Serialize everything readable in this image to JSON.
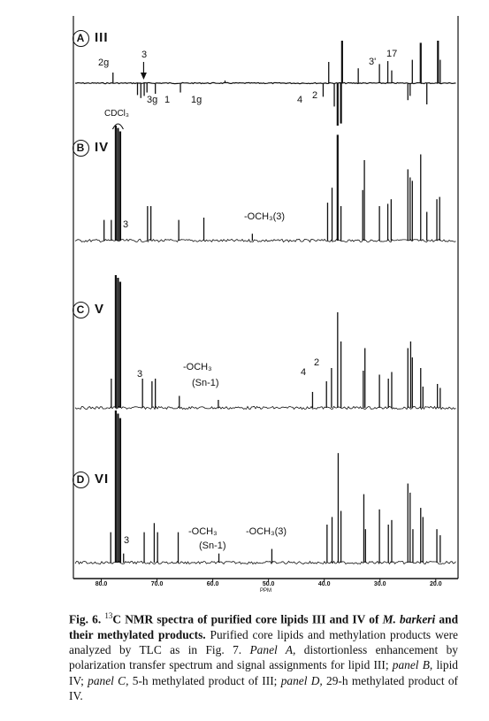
{
  "chart_data": {
    "type": "line",
    "title": "",
    "xlabel": "PPM",
    "ylabel": "",
    "xlim": [
      85,
      16
    ],
    "x_ticks": [
      "80.0",
      "70.0",
      "60.0",
      "50.0",
      "40.0",
      "30.0",
      "20.0"
    ],
    "x_tick_values": [
      80,
      70,
      60,
      50,
      40,
      30,
      20
    ],
    "grid": false,
    "panels": [
      {
        "id": "A",
        "label": "A",
        "compound": "III",
        "spectrum": "DEPT",
        "peaks": [
          [
            77.9,
            0.25
          ],
          [
            73.5,
            -0.28
          ],
          [
            72.9,
            -0.35
          ],
          [
            72.3,
            -0.3
          ],
          [
            71.8,
            -0.22
          ],
          [
            70.3,
            -0.25
          ],
          [
            65.8,
            -0.22
          ],
          [
            57.8,
            0.06
          ],
          [
            40.2,
            -0.32
          ],
          [
            39.2,
            0.5
          ],
          [
            38.2,
            -0.55
          ],
          [
            37.6,
            -1.0
          ],
          [
            37.0,
            -0.95
          ],
          [
            36.8,
            1.0
          ],
          [
            33.9,
            0.35
          ],
          [
            30.1,
            0.45
          ],
          [
            28.6,
            0.52
          ],
          [
            27.9,
            0.3
          ],
          [
            25.0,
            -0.4
          ],
          [
            24.6,
            -0.3
          ],
          [
            24.2,
            0.55
          ],
          [
            22.7,
            0.95
          ],
          [
            21.6,
            -0.5
          ],
          [
            19.6,
            1.0
          ],
          [
            19.2,
            0.55
          ]
        ]
      },
      {
        "id": "B",
        "label": "B",
        "compound": "IV",
        "peaks": [
          [
            77.4,
            1.0
          ],
          [
            77.0,
            0.98
          ],
          [
            76.6,
            0.95
          ],
          [
            79.5,
            0.18
          ],
          [
            78.2,
            0.18
          ],
          [
            71.7,
            0.3
          ],
          [
            71.1,
            0.3
          ],
          [
            66.1,
            0.18
          ],
          [
            61.6,
            0.2
          ],
          [
            52.9,
            0.06
          ],
          [
            39.4,
            0.33
          ],
          [
            38.6,
            0.46
          ],
          [
            37.6,
            0.92
          ],
          [
            37.0,
            0.3
          ],
          [
            33.1,
            0.44
          ],
          [
            32.8,
            0.7
          ],
          [
            30.1,
            0.3
          ],
          [
            28.6,
            0.32
          ],
          [
            28.0,
            0.36
          ],
          [
            25.0,
            0.62
          ],
          [
            24.6,
            0.55
          ],
          [
            24.2,
            0.52
          ],
          [
            22.7,
            0.75
          ],
          [
            21.6,
            0.25
          ],
          [
            19.8,
            0.36
          ],
          [
            19.3,
            0.38
          ]
        ]
      },
      {
        "id": "C",
        "label": "C",
        "compound": "V",
        "peaks": [
          [
            77.4,
            1.0
          ],
          [
            77.0,
            0.98
          ],
          [
            76.6,
            0.95
          ],
          [
            78.2,
            0.22
          ],
          [
            72.6,
            0.22
          ],
          [
            70.9,
            0.2
          ],
          [
            70.3,
            0.22
          ],
          [
            66.0,
            0.09
          ],
          [
            59.0,
            0.06
          ],
          [
            42.1,
            0.12
          ],
          [
            39.6,
            0.2
          ],
          [
            38.7,
            0.3
          ],
          [
            37.6,
            0.72
          ],
          [
            37.0,
            0.5
          ],
          [
            33.0,
            0.28
          ],
          [
            32.7,
            0.45
          ],
          [
            30.1,
            0.25
          ],
          [
            28.5,
            0.22
          ],
          [
            27.9,
            0.27
          ],
          [
            25.0,
            0.45
          ],
          [
            24.5,
            0.5
          ],
          [
            24.2,
            0.38
          ],
          [
            22.7,
            0.3
          ],
          [
            22.3,
            0.16
          ],
          [
            19.7,
            0.18
          ],
          [
            19.2,
            0.15
          ]
        ]
      },
      {
        "id": "D",
        "label": "D",
        "compound": "VI",
        "peaks": [
          [
            77.4,
            1.0
          ],
          [
            77.0,
            0.98
          ],
          [
            76.6,
            0.95
          ],
          [
            78.3,
            0.2
          ],
          [
            76.0,
            0.06
          ],
          [
            72.3,
            0.2
          ],
          [
            70.5,
            0.26
          ],
          [
            69.9,
            0.2
          ],
          [
            66.2,
            0.2
          ],
          [
            58.9,
            0.06
          ],
          [
            49.4,
            0.09
          ],
          [
            39.5,
            0.25
          ],
          [
            38.6,
            0.3
          ],
          [
            37.5,
            0.72
          ],
          [
            37.0,
            0.34
          ],
          [
            32.9,
            0.45
          ],
          [
            32.6,
            0.22
          ],
          [
            30.1,
            0.35
          ],
          [
            28.5,
            0.25
          ],
          [
            27.9,
            0.28
          ],
          [
            25.0,
            0.52
          ],
          [
            24.6,
            0.46
          ],
          [
            24.1,
            0.22
          ],
          [
            22.7,
            0.36
          ],
          [
            22.3,
            0.3
          ],
          [
            19.8,
            0.22
          ],
          [
            19.2,
            0.18
          ]
        ]
      }
    ]
  },
  "panels": {
    "A": {
      "letter": "A",
      "roman": "III"
    },
    "B": {
      "letter": "B",
      "roman": "IV"
    },
    "C": {
      "letter": "C",
      "roman": "V"
    },
    "D": {
      "letter": "D",
      "roman": "VI"
    }
  },
  "annotations": {
    "a_2g": "2g",
    "a_3_top": "3",
    "a_3g": "3g",
    "a_1": "1",
    "a_1g": "1g",
    "a_4": "4",
    "a_2": "2",
    "a_3p": "3'",
    "a_17": "17",
    "b_cdcl3": "CDCl₃",
    "b_3": "3",
    "b_och3": "-OCH₃(3)",
    "c_3": "3",
    "c_och3": "-OCH₃",
    "c_sn1": "(Sn-1)",
    "c_4": "4",
    "c_2": "2",
    "d_3": "3",
    "d_och3": "-OCH₃",
    "d_sn1": "(Sn-1)",
    "d_och3b": "-OCH₃(3)"
  },
  "caption": {
    "fig": "Fig. 6. ",
    "sup": "13",
    "p1": "C NMR spectra of purified core lipids III and IV of ",
    "species": "M. barkeri",
    "p2": " and their methylated products.",
    "p3": " Purified core lipids and methylation products were analyzed by TLC as in Fig. 7. ",
    "panelA": "Panel A,",
    "p4": " distortionless enhancement by polarization transfer spectrum and signal assignments for lipid III; ",
    "panelB": "panel B,",
    "p5": " lipid IV; ",
    "panelC": "panel C,",
    "p6": " 5-h methylated product of III; ",
    "panelD": "panel D,",
    "p7": " 29-h methylated product of IV."
  }
}
